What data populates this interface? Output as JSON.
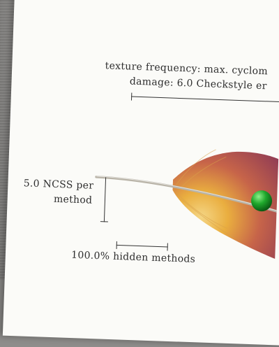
{
  "header": {
    "line1": "texture frequency: max. cyclom",
    "line2": "damage: 6.0 Checkstyle er"
  },
  "axis_left": {
    "line1": "5.0 NCSS per",
    "line2": "method"
  },
  "axis_bottom": {
    "label": "100.0% hidden methods"
  },
  "colors": {
    "paper": "#fbfbf8",
    "feather_inner": "#e8a72f",
    "feather_outer": "#8a2a4a",
    "marker": "#1fa82c"
  }
}
